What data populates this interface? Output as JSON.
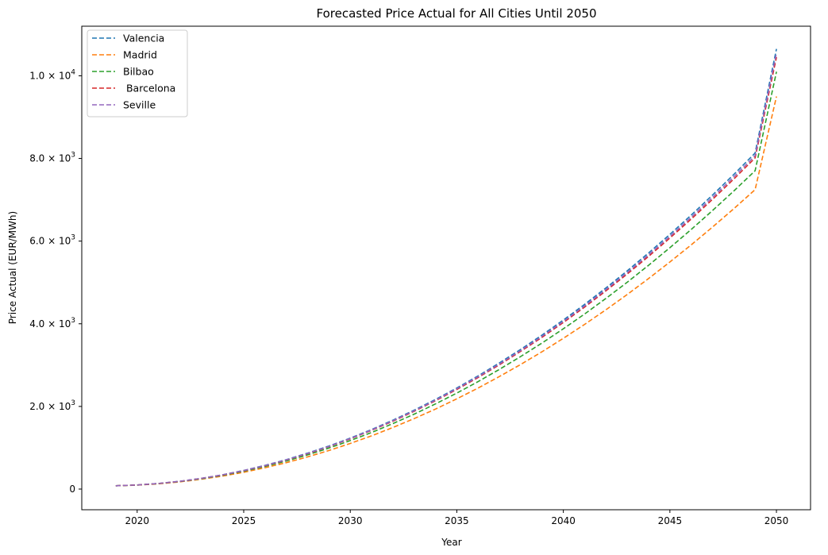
{
  "chart_data": {
    "type": "line",
    "title": "Forecasted Price Actual for All Cities Until 2050",
    "xlabel": "Year",
    "ylabel": "Price Actual (EUR/MWh)",
    "xlim": [
      2017.4,
      2051.6
    ],
    "ylim": [
      -500,
      11200
    ],
    "x_ticks": [
      2020,
      2025,
      2030,
      2035,
      2040,
      2045,
      2050
    ],
    "x_tick_labels": [
      "2020",
      "2025",
      "2030",
      "2035",
      "2040",
      "2045",
      "2050"
    ],
    "y_ticks": [
      0,
      2000,
      4000,
      6000,
      8000,
      10000
    ],
    "y_tick_labels": [
      {
        "base": "0",
        "exp": ""
      },
      {
        "base": "2.0 × 10",
        "exp": "3"
      },
      {
        "base": "4.0 × 10",
        "exp": "3"
      },
      {
        "base": "6.0 × 10",
        "exp": "3"
      },
      {
        "base": "8.0 × 10",
        "exp": "3"
      },
      {
        "base": "1.0 × 10",
        "exp": "4"
      }
    ],
    "legend_position": "top-left",
    "line_style": "dashed",
    "x": [
      2019,
      2020,
      2021,
      2022,
      2023,
      2024,
      2025,
      2026,
      2027,
      2028,
      2029,
      2030,
      2031,
      2032,
      2033,
      2034,
      2035,
      2036,
      2037,
      2038,
      2039,
      2040,
      2041,
      2042,
      2043,
      2044,
      2045,
      2046,
      2047,
      2048,
      2049,
      2050
    ],
    "series": [
      {
        "name": "Valencia",
        "color": "#1f77b4",
        "values": [
          80,
          99,
          135,
          188,
          259,
          346,
          451,
          573,
          712,
          869,
          1042,
          1233,
          1441,
          1667,
          1909,
          2169,
          2446,
          2740,
          3052,
          3380,
          3726,
          4089,
          4470,
          4867,
          5282,
          5714,
          6163,
          6629,
          7113,
          7614,
          8132,
          10650
        ]
      },
      {
        "name": "Madrid",
        "color": "#ff7f0e",
        "values": [
          80,
          96,
          127,
          174,
          237,
          314,
          407,
          516,
          640,
          779,
          934,
          1104,
          1289,
          1490,
          1706,
          1937,
          2184,
          2446,
          2724,
          3016,
          3324,
          3648,
          3986,
          4340,
          4710,
          5094,
          5494,
          5909,
          6339,
          6785,
          7246,
          9500
        ]
      },
      {
        "name": "Bilbao",
        "color": "#2ca02c",
        "values": [
          80,
          98,
          132,
          182,
          249,
          332,
          431,
          547,
          679,
          828,
          992,
          1173,
          1370,
          1584,
          1814,
          2060,
          2322,
          2601,
          2896,
          3207,
          3534,
          3878,
          4238,
          4614,
          5007,
          5415,
          5840,
          6282,
          6739,
          7213,
          7703,
          10100
        ]
      },
      {
        "name": " Barcelona",
        "color": "#d62728",
        "values": [
          80,
          99,
          134,
          186,
          256,
          342,
          445,
          565,
          702,
          857,
          1028,
          1216,
          1421,
          1643,
          1882,
          2138,
          2411,
          2701,
          3008,
          3332,
          3672,
          4030,
          4405,
          4797,
          5205,
          5631,
          6074,
          6533,
          7010,
          7503,
          8014,
          10450
        ]
      },
      {
        "name": "Seville",
        "color": "#9467bd",
        "values": [
          80,
          99,
          135,
          187,
          257,
          344,
          448,
          569,
          707,
          862,
          1034,
          1223,
          1430,
          1654,
          1894,
          2152,
          2427,
          2719,
          3028,
          3354,
          3697,
          4057,
          4434,
          4829,
          5240,
          5669,
          6115,
          6578,
          7058,
          7555,
          8069,
          10550
        ]
      }
    ]
  }
}
